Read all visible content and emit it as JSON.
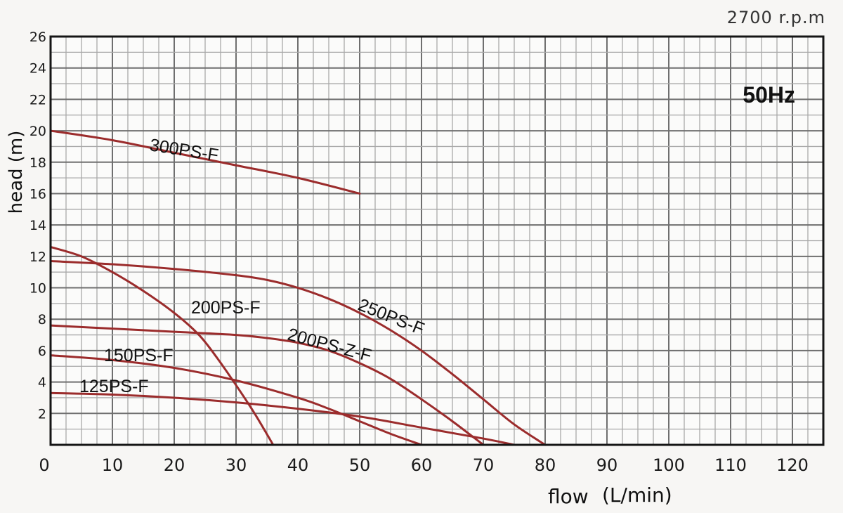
{
  "chart_data": {
    "type": "line",
    "title": "",
    "speed_note": "2700 r.p.m",
    "frequency_note": "50Hz",
    "xlabel": "flow",
    "xlabel_unit": "(L/min)",
    "ylabel": "head (m)",
    "xlim": [
      0,
      125
    ],
    "ylim": [
      0,
      26
    ],
    "x_ticks": [
      0,
      10,
      20,
      30,
      40,
      50,
      60,
      70,
      80,
      90,
      100,
      110,
      120
    ],
    "y_ticks": [
      2,
      4,
      6,
      8,
      10,
      12,
      14,
      16,
      18,
      20,
      22,
      24,
      26
    ],
    "grid": true,
    "line_color": "#9b2c2c",
    "series": [
      {
        "name": "300PS-F",
        "x": [
          0,
          10,
          20,
          30,
          40,
          50
        ],
        "y": [
          20.0,
          19.4,
          18.6,
          17.8,
          17.0,
          16.0
        ]
      },
      {
        "name": "250PS-F",
        "x": [
          0,
          10,
          20,
          30,
          35,
          40,
          45,
          50,
          55,
          60,
          65,
          70,
          75,
          80
        ],
        "y": [
          11.7,
          11.5,
          11.2,
          10.8,
          10.5,
          10.0,
          9.3,
          8.4,
          7.3,
          6.0,
          4.5,
          2.9,
          1.3,
          0
        ]
      },
      {
        "name": "200PS-Z-F",
        "x": [
          0,
          10,
          20,
          30,
          35,
          40,
          45,
          50,
          55,
          60,
          65,
          70
        ],
        "y": [
          7.6,
          7.4,
          7.2,
          7.0,
          6.8,
          6.5,
          6.0,
          5.2,
          4.2,
          2.9,
          1.5,
          0
        ]
      },
      {
        "name": "200PS-F",
        "x": [
          0,
          5,
          10,
          15,
          20,
          24,
          27,
          30,
          33,
          36
        ],
        "y": [
          12.6,
          12.0,
          11.0,
          9.8,
          8.4,
          7.0,
          5.5,
          3.8,
          2.0,
          0
        ]
      },
      {
        "name": "150PS-F",
        "x": [
          0,
          10,
          20,
          30,
          40,
          45,
          50,
          55,
          60
        ],
        "y": [
          5.7,
          5.4,
          4.9,
          4.1,
          3.0,
          2.3,
          1.5,
          0.7,
          0
        ]
      },
      {
        "name": "125PS-F",
        "x": [
          0,
          10,
          20,
          30,
          40,
          50,
          60,
          70,
          75
        ],
        "y": [
          3.3,
          3.2,
          3.0,
          2.7,
          2.3,
          1.8,
          1.1,
          0.4,
          0
        ]
      }
    ]
  }
}
